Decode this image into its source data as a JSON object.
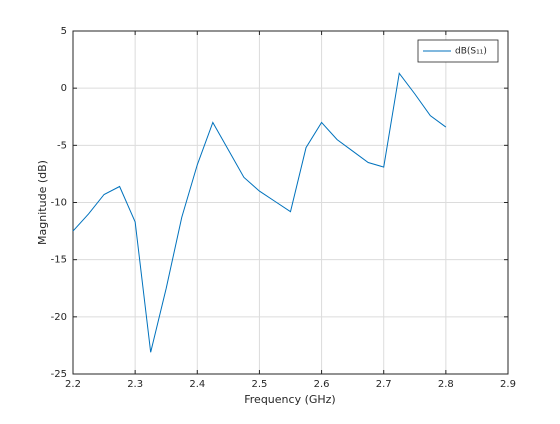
{
  "chart_data": {
    "type": "line",
    "xlabel": "Frequency (GHz)",
    "ylabel": "Magnitude (dB)",
    "x": [
      2.2,
      2.225,
      2.25,
      2.275,
      2.3,
      2.325,
      2.35,
      2.375,
      2.4,
      2.425,
      2.45,
      2.475,
      2.5,
      2.525,
      2.55,
      2.575,
      2.6,
      2.625,
      2.65,
      2.675,
      2.7,
      2.725,
      2.75,
      2.775,
      2.8
    ],
    "series": [
      {
        "name": "dB(S₁₁)",
        "color": "#0072bd",
        "values": [
          -12.5,
          -11.0,
          -9.3,
          -8.6,
          -11.7,
          -23.1,
          -17.5,
          -11.3,
          -6.7,
          -3.0,
          -5.4,
          -7.8,
          -9.0,
          -9.9,
          -10.8,
          -5.2,
          -3.0,
          -4.5,
          -5.5,
          -6.5,
          -6.9,
          1.3,
          -0.5,
          -2.4,
          -3.4
        ]
      }
    ],
    "xlim": [
      2.2,
      2.9
    ],
    "xticks": [
      2.2,
      2.3,
      2.4,
      2.5,
      2.6,
      2.7,
      2.8,
      2.9
    ],
    "ylim": [
      -25,
      5
    ],
    "yticks": [
      -25,
      -20,
      -15,
      -10,
      -5,
      0,
      5
    ],
    "grid": true,
    "legend": "northeast"
  }
}
